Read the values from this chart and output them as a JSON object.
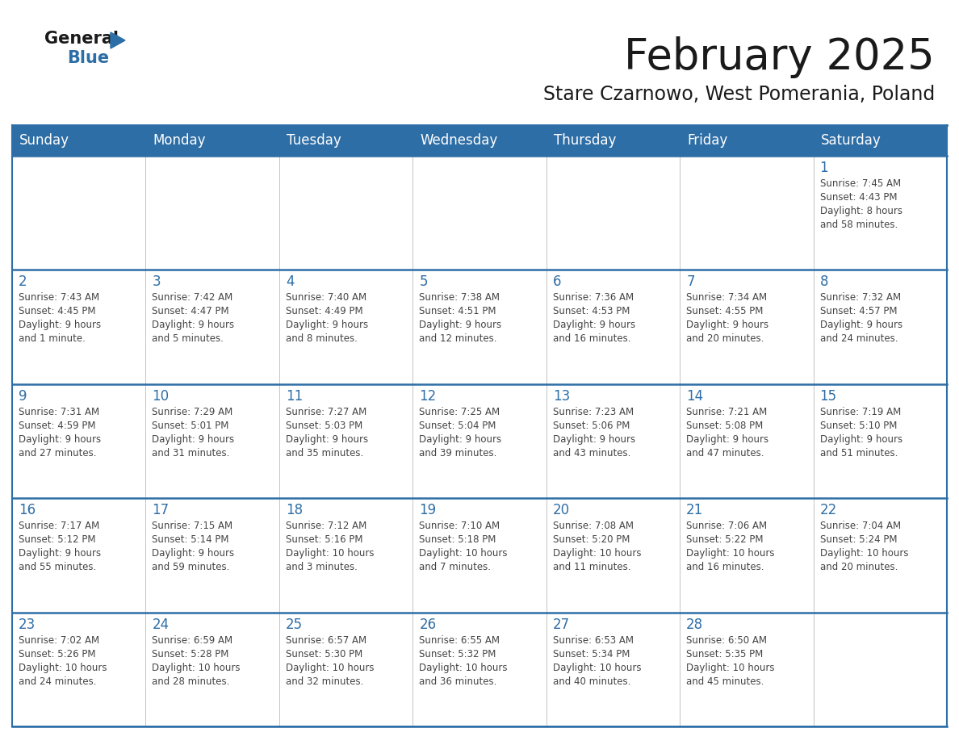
{
  "title": "February 2025",
  "subtitle": "Stare Czarnowo, West Pomerania, Poland",
  "days_of_week": [
    "Sunday",
    "Monday",
    "Tuesday",
    "Wednesday",
    "Thursday",
    "Friday",
    "Saturday"
  ],
  "header_bg": "#2E6EA6",
  "header_text": "#FFFFFF",
  "cell_bg": "#FFFFFF",
  "border_color": "#2E6EA6",
  "cell_border_color": "#AAAAAA",
  "day_num_color": "#2E6EA6",
  "info_text_color": "#444444",
  "title_color": "#1a1a1a",
  "logo_general_color": "#1a1a1a",
  "logo_blue_color": "#2E6EA6",
  "weeks": [
    [
      {
        "day": null,
        "info": ""
      },
      {
        "day": null,
        "info": ""
      },
      {
        "day": null,
        "info": ""
      },
      {
        "day": null,
        "info": ""
      },
      {
        "day": null,
        "info": ""
      },
      {
        "day": null,
        "info": ""
      },
      {
        "day": 1,
        "info": "Sunrise: 7:45 AM\nSunset: 4:43 PM\nDaylight: 8 hours\nand 58 minutes."
      }
    ],
    [
      {
        "day": 2,
        "info": "Sunrise: 7:43 AM\nSunset: 4:45 PM\nDaylight: 9 hours\nand 1 minute."
      },
      {
        "day": 3,
        "info": "Sunrise: 7:42 AM\nSunset: 4:47 PM\nDaylight: 9 hours\nand 5 minutes."
      },
      {
        "day": 4,
        "info": "Sunrise: 7:40 AM\nSunset: 4:49 PM\nDaylight: 9 hours\nand 8 minutes."
      },
      {
        "day": 5,
        "info": "Sunrise: 7:38 AM\nSunset: 4:51 PM\nDaylight: 9 hours\nand 12 minutes."
      },
      {
        "day": 6,
        "info": "Sunrise: 7:36 AM\nSunset: 4:53 PM\nDaylight: 9 hours\nand 16 minutes."
      },
      {
        "day": 7,
        "info": "Sunrise: 7:34 AM\nSunset: 4:55 PM\nDaylight: 9 hours\nand 20 minutes."
      },
      {
        "day": 8,
        "info": "Sunrise: 7:32 AM\nSunset: 4:57 PM\nDaylight: 9 hours\nand 24 minutes."
      }
    ],
    [
      {
        "day": 9,
        "info": "Sunrise: 7:31 AM\nSunset: 4:59 PM\nDaylight: 9 hours\nand 27 minutes."
      },
      {
        "day": 10,
        "info": "Sunrise: 7:29 AM\nSunset: 5:01 PM\nDaylight: 9 hours\nand 31 minutes."
      },
      {
        "day": 11,
        "info": "Sunrise: 7:27 AM\nSunset: 5:03 PM\nDaylight: 9 hours\nand 35 minutes."
      },
      {
        "day": 12,
        "info": "Sunrise: 7:25 AM\nSunset: 5:04 PM\nDaylight: 9 hours\nand 39 minutes."
      },
      {
        "day": 13,
        "info": "Sunrise: 7:23 AM\nSunset: 5:06 PM\nDaylight: 9 hours\nand 43 minutes."
      },
      {
        "day": 14,
        "info": "Sunrise: 7:21 AM\nSunset: 5:08 PM\nDaylight: 9 hours\nand 47 minutes."
      },
      {
        "day": 15,
        "info": "Sunrise: 7:19 AM\nSunset: 5:10 PM\nDaylight: 9 hours\nand 51 minutes."
      }
    ],
    [
      {
        "day": 16,
        "info": "Sunrise: 7:17 AM\nSunset: 5:12 PM\nDaylight: 9 hours\nand 55 minutes."
      },
      {
        "day": 17,
        "info": "Sunrise: 7:15 AM\nSunset: 5:14 PM\nDaylight: 9 hours\nand 59 minutes."
      },
      {
        "day": 18,
        "info": "Sunrise: 7:12 AM\nSunset: 5:16 PM\nDaylight: 10 hours\nand 3 minutes."
      },
      {
        "day": 19,
        "info": "Sunrise: 7:10 AM\nSunset: 5:18 PM\nDaylight: 10 hours\nand 7 minutes."
      },
      {
        "day": 20,
        "info": "Sunrise: 7:08 AM\nSunset: 5:20 PM\nDaylight: 10 hours\nand 11 minutes."
      },
      {
        "day": 21,
        "info": "Sunrise: 7:06 AM\nSunset: 5:22 PM\nDaylight: 10 hours\nand 16 minutes."
      },
      {
        "day": 22,
        "info": "Sunrise: 7:04 AM\nSunset: 5:24 PM\nDaylight: 10 hours\nand 20 minutes."
      }
    ],
    [
      {
        "day": 23,
        "info": "Sunrise: 7:02 AM\nSunset: 5:26 PM\nDaylight: 10 hours\nand 24 minutes."
      },
      {
        "day": 24,
        "info": "Sunrise: 6:59 AM\nSunset: 5:28 PM\nDaylight: 10 hours\nand 28 minutes."
      },
      {
        "day": 25,
        "info": "Sunrise: 6:57 AM\nSunset: 5:30 PM\nDaylight: 10 hours\nand 32 minutes."
      },
      {
        "day": 26,
        "info": "Sunrise: 6:55 AM\nSunset: 5:32 PM\nDaylight: 10 hours\nand 36 minutes."
      },
      {
        "day": 27,
        "info": "Sunrise: 6:53 AM\nSunset: 5:34 PM\nDaylight: 10 hours\nand 40 minutes."
      },
      {
        "day": 28,
        "info": "Sunrise: 6:50 AM\nSunset: 5:35 PM\nDaylight: 10 hours\nand 45 minutes."
      },
      {
        "day": null,
        "info": ""
      }
    ]
  ]
}
